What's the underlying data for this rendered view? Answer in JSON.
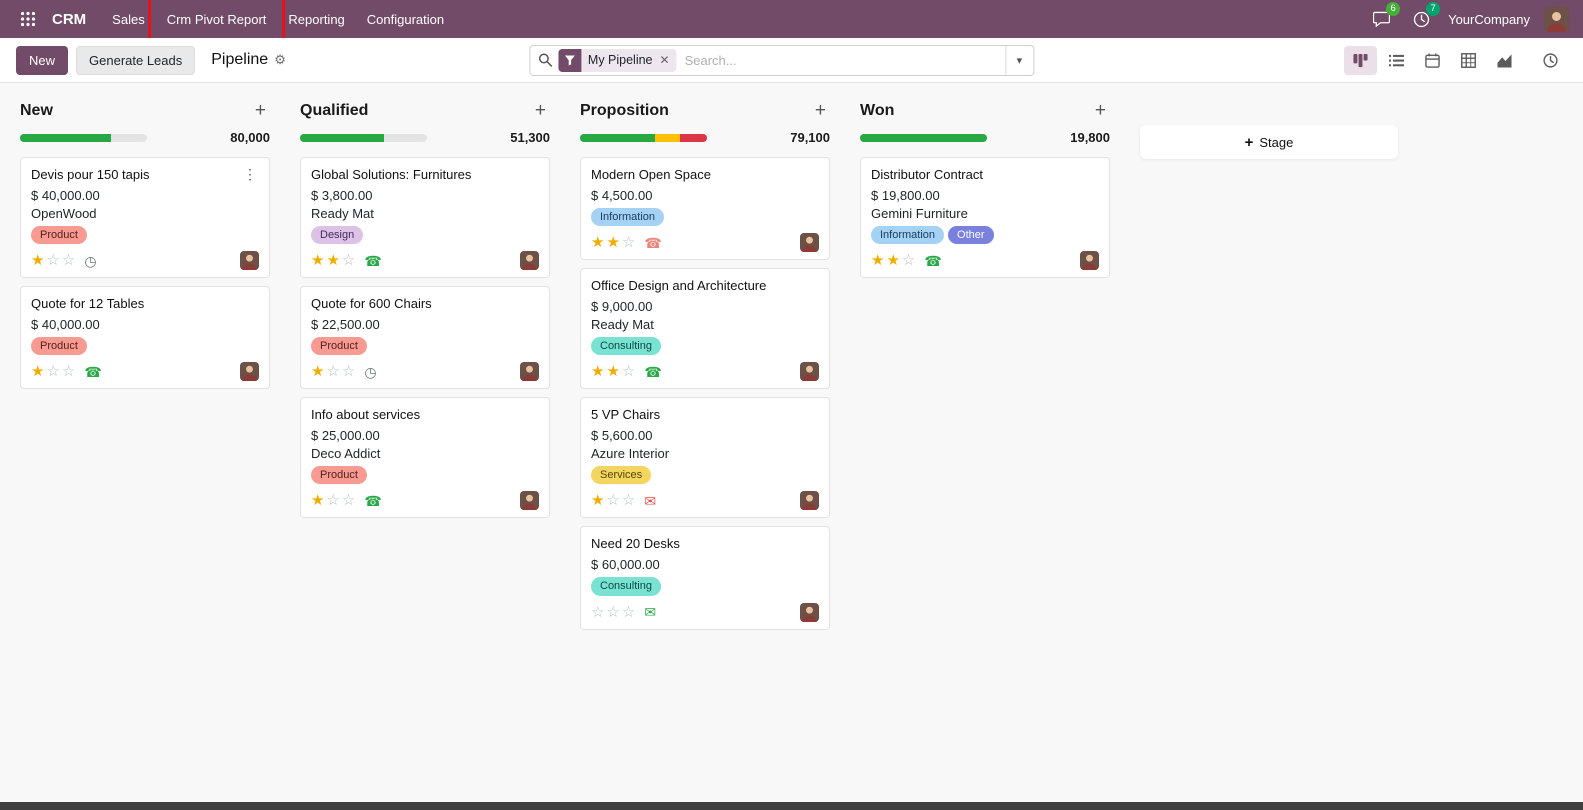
{
  "topbar": {
    "app_name": "CRM",
    "menus": [
      {
        "label": "Sales"
      },
      {
        "label": "Crm Pivot Report",
        "annotated": true
      },
      {
        "label": "Reporting"
      },
      {
        "label": "Configuration"
      }
    ],
    "messages_badge": "6",
    "activities_badge": "7",
    "company": "YourCompany"
  },
  "control_panel": {
    "new_button": "New",
    "generate_leads_button": "Generate Leads",
    "title": "Pipeline",
    "search": {
      "facet_label": "My Pipeline",
      "placeholder": "Search..."
    }
  },
  "colors": {
    "brand": "#714B67",
    "progress_green": "#28a745",
    "progress_yellow": "#ffc107",
    "progress_red": "#dc3545",
    "star_gold": "#f0ad00"
  },
  "board": {
    "add_stage_label": "Stage",
    "columns": [
      {
        "name": "New",
        "total": "80,000",
        "progress": [
          {
            "color": "green",
            "pct": 72
          }
        ],
        "cards": [
          {
            "title": "Devis pour 150 tapis",
            "amount": "$ 40,000.00",
            "partner": "OpenWood",
            "tags": [
              {
                "label": "Product",
                "color": "red"
              }
            ],
            "stars": 1,
            "activity": {
              "icon": "clock",
              "color": "#6c757d"
            },
            "menu": true
          },
          {
            "title": "Quote for 12 Tables",
            "amount": "$ 40,000.00",
            "partner": "",
            "tags": [
              {
                "label": "Product",
                "color": "red"
              }
            ],
            "stars": 1,
            "activity": {
              "icon": "phone",
              "color": "#28a745"
            }
          }
        ]
      },
      {
        "name": "Qualified",
        "total": "51,300",
        "progress": [
          {
            "color": "green",
            "pct": 66
          }
        ],
        "cards": [
          {
            "title": "Global Solutions: Furnitures",
            "amount": "$ 3,800.00",
            "partner": "Ready Mat",
            "tags": [
              {
                "label": "Design",
                "color": "purple"
              }
            ],
            "stars": 2,
            "activity": {
              "icon": "phone",
              "color": "#28a745"
            }
          },
          {
            "title": "Quote for 600 Chairs",
            "amount": "$ 22,500.00",
            "partner": "",
            "tags": [
              {
                "label": "Product",
                "color": "red"
              }
            ],
            "stars": 1,
            "activity": {
              "icon": "clock",
              "color": "#6c757d"
            }
          },
          {
            "title": "Info about services",
            "amount": "$ 25,000.00",
            "partner": "Deco Addict",
            "tags": [
              {
                "label": "Product",
                "color": "red"
              }
            ],
            "stars": 1,
            "activity": {
              "icon": "phone",
              "color": "#28a745"
            }
          }
        ]
      },
      {
        "name": "Proposition",
        "total": "79,100",
        "progress": [
          {
            "color": "green",
            "pct": 59
          },
          {
            "color": "yellow",
            "pct": 20
          },
          {
            "color": "red",
            "pct": 21
          }
        ],
        "cards": [
          {
            "title": "Modern Open Space",
            "amount": "$ 4,500.00",
            "partner": "",
            "tags": [
              {
                "label": "Information",
                "color": "blue"
              }
            ],
            "stars": 2,
            "activity": {
              "icon": "phone",
              "color": "#ec8479"
            }
          },
          {
            "title": "Office Design and Architecture",
            "amount": "$ 9,000.00",
            "partner": "Ready Mat",
            "tags": [
              {
                "label": "Consulting",
                "color": "teal"
              }
            ],
            "stars": 2,
            "activity": {
              "icon": "phone",
              "color": "#28a745"
            }
          },
          {
            "title": "5 VP Chairs",
            "amount": "$ 5,600.00",
            "partner": "Azure Interior",
            "tags": [
              {
                "label": "Services",
                "color": "yellow"
              }
            ],
            "stars": 1,
            "activity": {
              "icon": "envelope",
              "color": "#e04f44"
            }
          },
          {
            "title": "Need 20 Desks",
            "amount": "$ 60,000.00",
            "partner": "",
            "tags": [
              {
                "label": "Consulting",
                "color": "teal"
              }
            ],
            "stars": 0,
            "activity": {
              "icon": "envelope",
              "color": "#28a745"
            }
          }
        ]
      },
      {
        "name": "Won",
        "total": "19,800",
        "progress": [
          {
            "color": "green",
            "pct": 100
          }
        ],
        "cards": [
          {
            "title": "Distributor Contract",
            "amount": "$ 19,800.00",
            "partner": "Gemini Furniture",
            "tags": [
              {
                "label": "Information",
                "color": "blue"
              },
              {
                "label": "Other",
                "color": "indigo"
              }
            ],
            "stars": 2,
            "activity": {
              "icon": "phone",
              "color": "#28a745"
            }
          }
        ]
      }
    ]
  }
}
